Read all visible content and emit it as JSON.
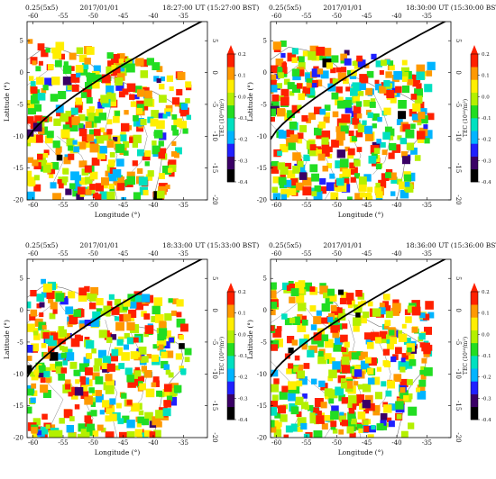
{
  "figure": {
    "xlabel": "Longitude (°)",
    "ylabel": "Latitude (°)",
    "colorbar_label": "TEC (10¹⁶/m²)",
    "lon_ticks": [
      -60,
      -55,
      -50,
      -45,
      -40,
      -35
    ],
    "lat_ticks": [
      5,
      0,
      -5,
      -10,
      -15,
      -20
    ],
    "lon_range": [
      -61,
      -31
    ],
    "lat_range": [
      -20,
      8
    ],
    "colorbar_ticks": [
      0.2,
      0.1,
      0.0,
      -0.1,
      -0.2,
      -0.3,
      -0.4
    ],
    "colorbar_range": [
      -0.4,
      0.2
    ],
    "colorbar_colors": [
      "#000000",
      "#3a0066",
      "#2020ff",
      "#00b4ff",
      "#00e0c0",
      "#22dd22",
      "#b4f000",
      "#ffee00",
      "#ff9900",
      "#ff2000"
    ]
  },
  "panels": [
    {
      "resolution": "0.25(5x5)",
      "date": "2017/01/01",
      "time": "18:27:00 UT (15:27:00 BST)",
      "seed": 11
    },
    {
      "resolution": "0.25(5x5)",
      "date": "2017/01/01",
      "time": "18:30:00 UT (15:30:00 BST)",
      "seed": 23
    },
    {
      "resolution": "0.25(5x5)",
      "date": "2017/01/01",
      "time": "18:33:00 UT (15:33:00 BST)",
      "seed": 37
    },
    {
      "resolution": "0.25(5x5)",
      "date": "2017/01/01",
      "time": "18:36:00 UT (15:36:00 BST)",
      "seed": 51
    }
  ]
}
